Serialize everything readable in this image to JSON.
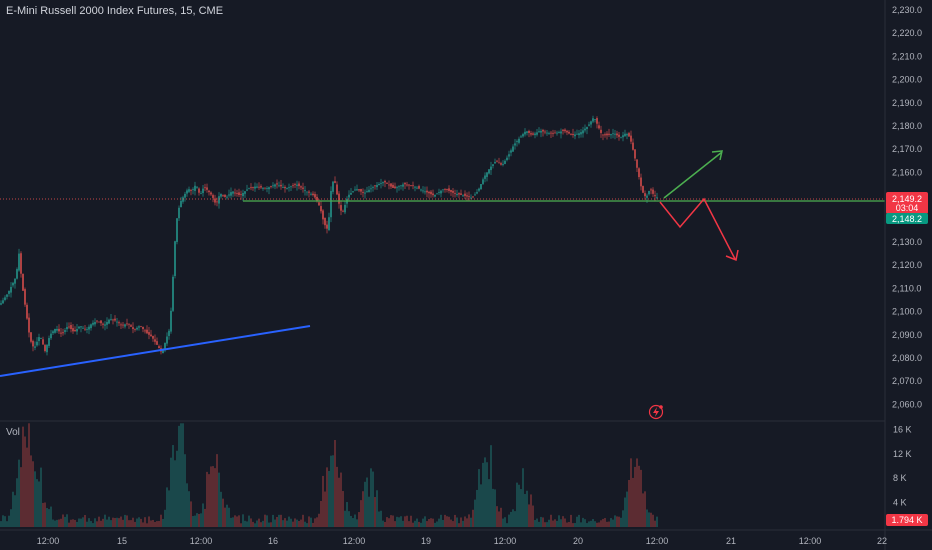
{
  "header": {
    "title": "E-Mini Russell 2000 Index Futures, 15, CME"
  },
  "volume_pane": {
    "label": "Vol"
  },
  "price_axis": {
    "ticks": [
      "2,230.0",
      "2,220.0",
      "2,210.0",
      "2,200.0",
      "2,190.0",
      "2,180.0",
      "2,170.0",
      "2,160.0",
      "2,150.0",
      "2,140.0",
      "2,130.0",
      "2,120.0",
      "2,110.0",
      "2,100.0",
      "2,090.0",
      "2,080.0",
      "2,070.0",
      "2,060.0"
    ],
    "tick_values": [
      2230,
      2220,
      2210,
      2200,
      2190,
      2180,
      2170,
      2160,
      2150,
      2140,
      2130,
      2120,
      2110,
      2100,
      2090,
      2080,
      2070,
      2060
    ],
    "range": [
      2057,
      2234
    ]
  },
  "volume_axis": {
    "ticks": [
      "16 K",
      "12 K",
      "8 K",
      "4 K"
    ],
    "tick_values": [
      16,
      12,
      8,
      4
    ]
  },
  "time_axis": {
    "labels": [
      "12:00",
      "15",
      "12:00",
      "16",
      "12:00",
      "19",
      "12:00",
      "20",
      "12:00",
      "21",
      "12:00",
      "22"
    ]
  },
  "price_badges": {
    "last_price": "2,149.2",
    "countdown": "03:04",
    "bid_price": "2,148.2",
    "volume_value": "1.794 K"
  },
  "colors": {
    "background": "#161a25",
    "up": "#26a69a",
    "down": "#ef5350",
    "support_line": "#4caf50",
    "trend_line": "#2962ff",
    "arrow_up": "#4caf50",
    "arrow_down": "#f23645",
    "badge_red": "#f23645",
    "badge_green": "#089981"
  },
  "icons": {
    "alert": "lightning-alert-icon"
  }
}
